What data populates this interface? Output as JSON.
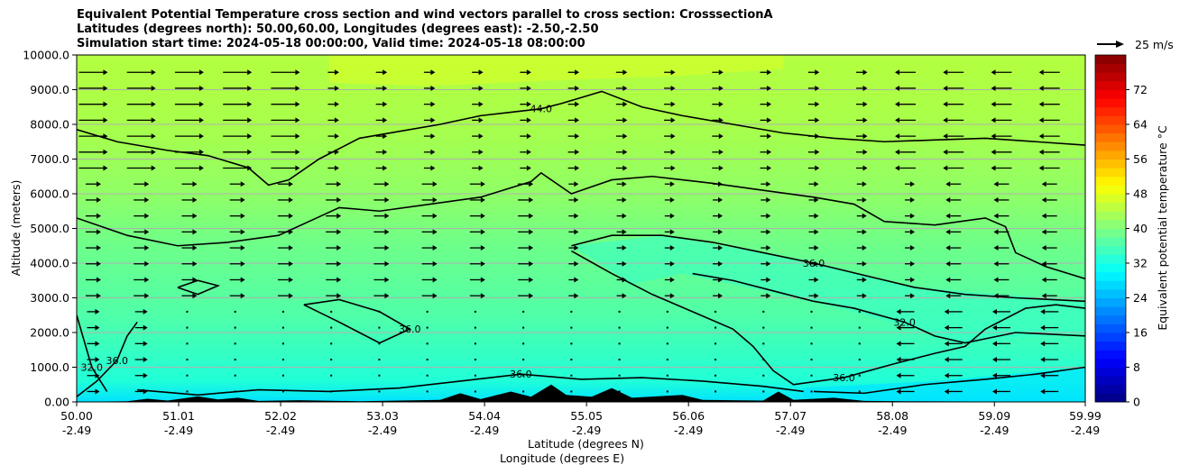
{
  "title": {
    "line1": "Equivalent Potential Temperature cross section and wind vectors parallel to cross section: CrosssectionA",
    "line2": "Latitudes (degrees north): 50.00,60.00, Longitudes (degrees east): -2.50,-2.50",
    "line3": "Simulation start time: 2024-05-18 00:00:00, Valid time: 2024-05-18 08:00:00"
  },
  "chart_data": {
    "type": "heatmap",
    "subtype": "vertical cross section with contour lines and wind quiver",
    "xlabel": "Latitude (degrees N)",
    "xlabel2": "Longitude (degrees E)",
    "ylabel": "Altitude (meters)",
    "xlim": [
      50.0,
      59.99
    ],
    "ylim": [
      0,
      10000
    ],
    "x_ticks": [
      {
        "lat": "50.00",
        "lon": "-2.49",
        "value": 50.0
      },
      {
        "lat": "51.01",
        "lon": "-2.49",
        "value": 51.01
      },
      {
        "lat": "52.02",
        "lon": "-2.49",
        "value": 52.02
      },
      {
        "lat": "53.03",
        "lon": "-2.49",
        "value": 53.03
      },
      {
        "lat": "54.04",
        "lon": "-2.49",
        "value": 54.04
      },
      {
        "lat": "55.05",
        "lon": "-2.49",
        "value": 55.05
      },
      {
        "lat": "56.06",
        "lon": "-2.49",
        "value": 56.06
      },
      {
        "lat": "57.07",
        "lon": "-2.49",
        "value": 57.07
      },
      {
        "lat": "58.08",
        "lon": "-2.49",
        "value": 58.08
      },
      {
        "lat": "59.09",
        "lon": "-2.49",
        "value": 59.09
      },
      {
        "lat": "59.99",
        "lon": "-2.49",
        "value": 59.99
      }
    ],
    "y_ticks": [
      "0.00",
      "1000.0",
      "2000.0",
      "3000.0",
      "4000.0",
      "5000.0",
      "6000.0",
      "7000.0",
      "8000.0",
      "9000.0",
      "10000.0"
    ],
    "y_tick_values": [
      0,
      1000,
      2000,
      3000,
      4000,
      5000,
      6000,
      7000,
      8000,
      9000,
      10000
    ],
    "grid": "horizontal",
    "colorbar": {
      "label": "Equivalent potential temperature $^\\circ$C",
      "label_display": "Equivalent potential temperature °C",
      "range": [
        0,
        80
      ],
      "ticks": [
        "0",
        "8",
        "16",
        "24",
        "32",
        "40",
        "48",
        "56",
        "64",
        "72"
      ],
      "tick_values": [
        0,
        8,
        16,
        24,
        32,
        40,
        48,
        56,
        64,
        72
      ],
      "colormap": "jet"
    },
    "quiver_key": {
      "label": "25 m/s",
      "speed": 25
    },
    "contours": [
      {
        "level": 44.0,
        "label": "44.0",
        "points": [
          [
            50.0,
            7850
          ],
          [
            50.4,
            7500
          ],
          [
            50.9,
            7250
          ],
          [
            51.3,
            7100
          ],
          [
            51.7,
            6750
          ],
          [
            51.9,
            6250
          ],
          [
            52.1,
            6400
          ],
          [
            52.4,
            7000
          ],
          [
            52.8,
            7600
          ],
          [
            53.2,
            7800
          ],
          [
            53.6,
            8000
          ],
          [
            54.0,
            8250
          ],
          [
            54.3,
            8350
          ],
          [
            54.6,
            8450
          ],
          [
            54.8,
            8600
          ],
          [
            55.2,
            8950
          ],
          [
            55.6,
            8500
          ],
          [
            56.0,
            8250
          ],
          [
            56.5,
            8000
          ],
          [
            57.0,
            7750
          ],
          [
            57.5,
            7600
          ],
          [
            58.0,
            7500
          ],
          [
            58.5,
            7550
          ],
          [
            59.0,
            7600
          ],
          [
            59.5,
            7500
          ],
          [
            59.99,
            7400
          ]
        ]
      },
      {
        "level": 40.0,
        "label": "",
        "points": [
          [
            50.0,
            5300
          ],
          [
            50.5,
            4800
          ],
          [
            51.0,
            4500
          ],
          [
            51.5,
            4600
          ],
          [
            52.0,
            4800
          ],
          [
            52.3,
            5200
          ],
          [
            52.6,
            5600
          ],
          [
            53.0,
            5500
          ],
          [
            53.5,
            5700
          ],
          [
            54.0,
            5900
          ],
          [
            54.5,
            6350
          ],
          [
            54.6,
            6600
          ],
          [
            54.9,
            6000
          ],
          [
            55.3,
            6400
          ],
          [
            55.7,
            6500
          ],
          [
            56.3,
            6300
          ],
          [
            56.8,
            6100
          ],
          [
            57.3,
            5900
          ],
          [
            57.7,
            5700
          ],
          [
            58.0,
            5200
          ],
          [
            58.5,
            5100
          ],
          [
            59.0,
            5300
          ],
          [
            59.2,
            5050
          ],
          [
            59.3,
            4300
          ],
          [
            59.6,
            3900
          ],
          [
            59.99,
            3550
          ]
        ]
      },
      {
        "level": 36.0,
        "label": "36.0",
        "points": [
          [
            54.9,
            4500
          ],
          [
            55.3,
            4800
          ],
          [
            55.8,
            4800
          ],
          [
            56.3,
            4600
          ],
          [
            56.8,
            4300
          ],
          [
            57.3,
            4000
          ],
          [
            57.8,
            3650
          ],
          [
            58.3,
            3300
          ],
          [
            58.8,
            3100
          ],
          [
            59.3,
            3000
          ],
          [
            59.99,
            2900
          ]
        ]
      },
      {
        "level": 36.0,
        "label": "36.0",
        "points": [
          [
            54.9,
            4350
          ],
          [
            55.3,
            3700
          ],
          [
            55.7,
            3100
          ],
          [
            56.1,
            2600
          ],
          [
            56.5,
            2100
          ],
          [
            56.7,
            1600
          ],
          [
            56.9,
            900
          ],
          [
            57.1,
            500
          ],
          [
            57.6,
            700
          ],
          [
            58.1,
            1100
          ],
          [
            58.5,
            1400
          ],
          [
            58.8,
            1600
          ],
          [
            59.0,
            2100
          ],
          [
            59.4,
            2700
          ],
          [
            59.7,
            2800
          ],
          [
            59.99,
            2700
          ]
        ]
      },
      {
        "level": 36.0,
        "label": "36.0",
        "points": [
          [
            52.25,
            2800
          ],
          [
            52.6,
            2950
          ],
          [
            53.0,
            2600
          ],
          [
            53.3,
            2100
          ],
          [
            53.0,
            1700
          ],
          [
            52.6,
            2300
          ],
          [
            52.25,
            2800
          ]
        ]
      },
      {
        "level": 36.0,
        "label": "36.0",
        "points": [
          [
            50.0,
            150
          ],
          [
            50.2,
            600
          ],
          [
            50.4,
            1200
          ],
          [
            50.5,
            1900
          ],
          [
            50.6,
            2300
          ]
        ]
      },
      {
        "level": 36.0,
        "label": "",
        "points": [
          [
            51.0,
            3300
          ],
          [
            51.2,
            3100
          ],
          [
            51.4,
            3350
          ],
          [
            51.2,
            3500
          ],
          [
            51.0,
            3300
          ]
        ]
      },
      {
        "level": 32.0,
        "label": "32.0",
        "points": [
          [
            50.0,
            2500
          ],
          [
            50.15,
            1000
          ],
          [
            50.3,
            300
          ]
        ]
      },
      {
        "level": 32.0,
        "label": "32.0",
        "points": [
          [
            56.1,
            3700
          ],
          [
            56.5,
            3500
          ],
          [
            56.9,
            3200
          ],
          [
            57.3,
            2900
          ],
          [
            57.7,
            2700
          ],
          [
            58.2,
            2300
          ],
          [
            58.5,
            1900
          ],
          [
            58.8,
            1700
          ],
          [
            59.3,
            2000
          ],
          [
            59.99,
            1900
          ]
        ]
      },
      {
        "level": 32.0,
        "label": "",
        "points": [
          [
            57.3,
            300
          ],
          [
            57.8,
            250
          ],
          [
            58.4,
            500
          ],
          [
            59.0,
            650
          ],
          [
            59.5,
            800
          ],
          [
            59.99,
            1000
          ]
        ]
      },
      {
        "level": 36.0,
        "label": "36.0",
        "points": [
          [
            50.6,
            350
          ],
          [
            51.2,
            200
          ],
          [
            51.8,
            350
          ],
          [
            52.5,
            300
          ],
          [
            53.2,
            400
          ],
          [
            53.8,
            600
          ],
          [
            54.4,
            800
          ],
          [
            55.0,
            650
          ],
          [
            55.6,
            700
          ],
          [
            56.2,
            600
          ],
          [
            56.8,
            450
          ],
          [
            57.2,
            300
          ]
        ]
      }
    ],
    "terrain": "dark ground profile along lower boundary"
  }
}
